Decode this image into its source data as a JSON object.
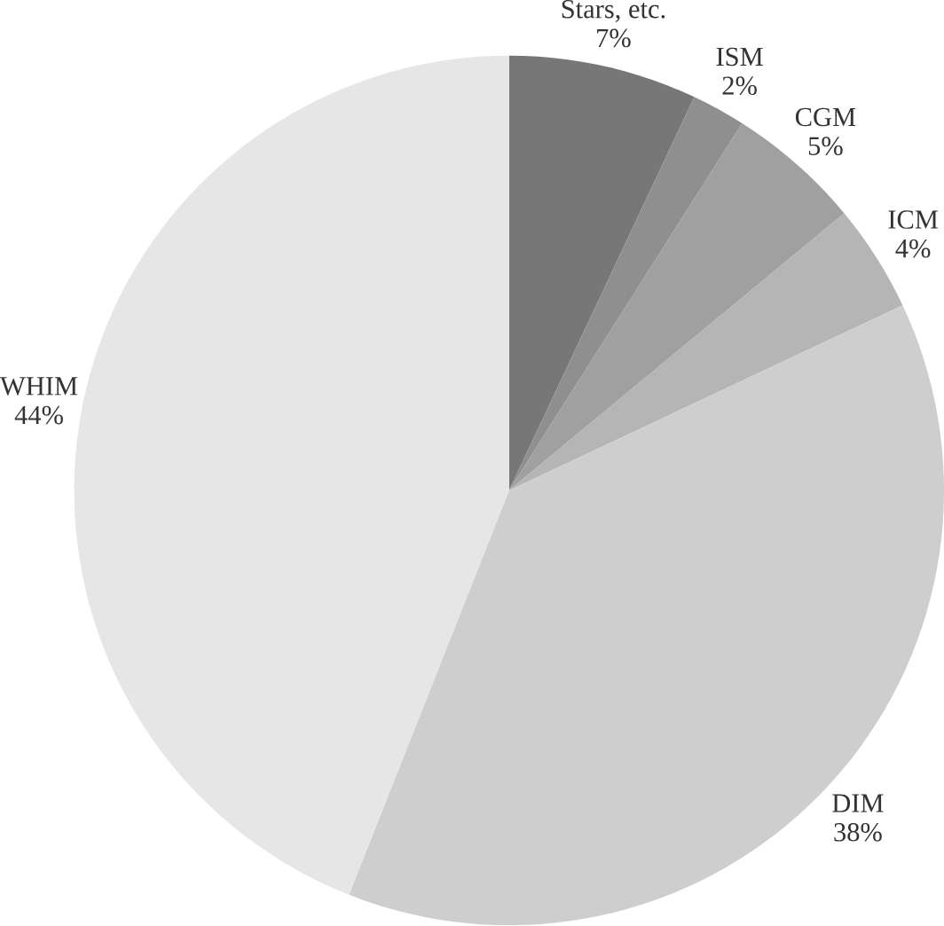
{
  "chart_data": {
    "type": "pie",
    "categories": [
      "Stars, etc.",
      "ISM",
      "CGM",
      "ICM",
      "DIM",
      "WHIM"
    ],
    "values": [
      7,
      2,
      5,
      4,
      38,
      44
    ],
    "value_labels": [
      "7%",
      "2%",
      "5%",
      "4%",
      "38%",
      "44%"
    ],
    "colors": [
      "#777777",
      "#8f8f8f",
      "#a0a0a0",
      "#b5b5b5",
      "#cecece",
      "#e6e6e6"
    ]
  }
}
